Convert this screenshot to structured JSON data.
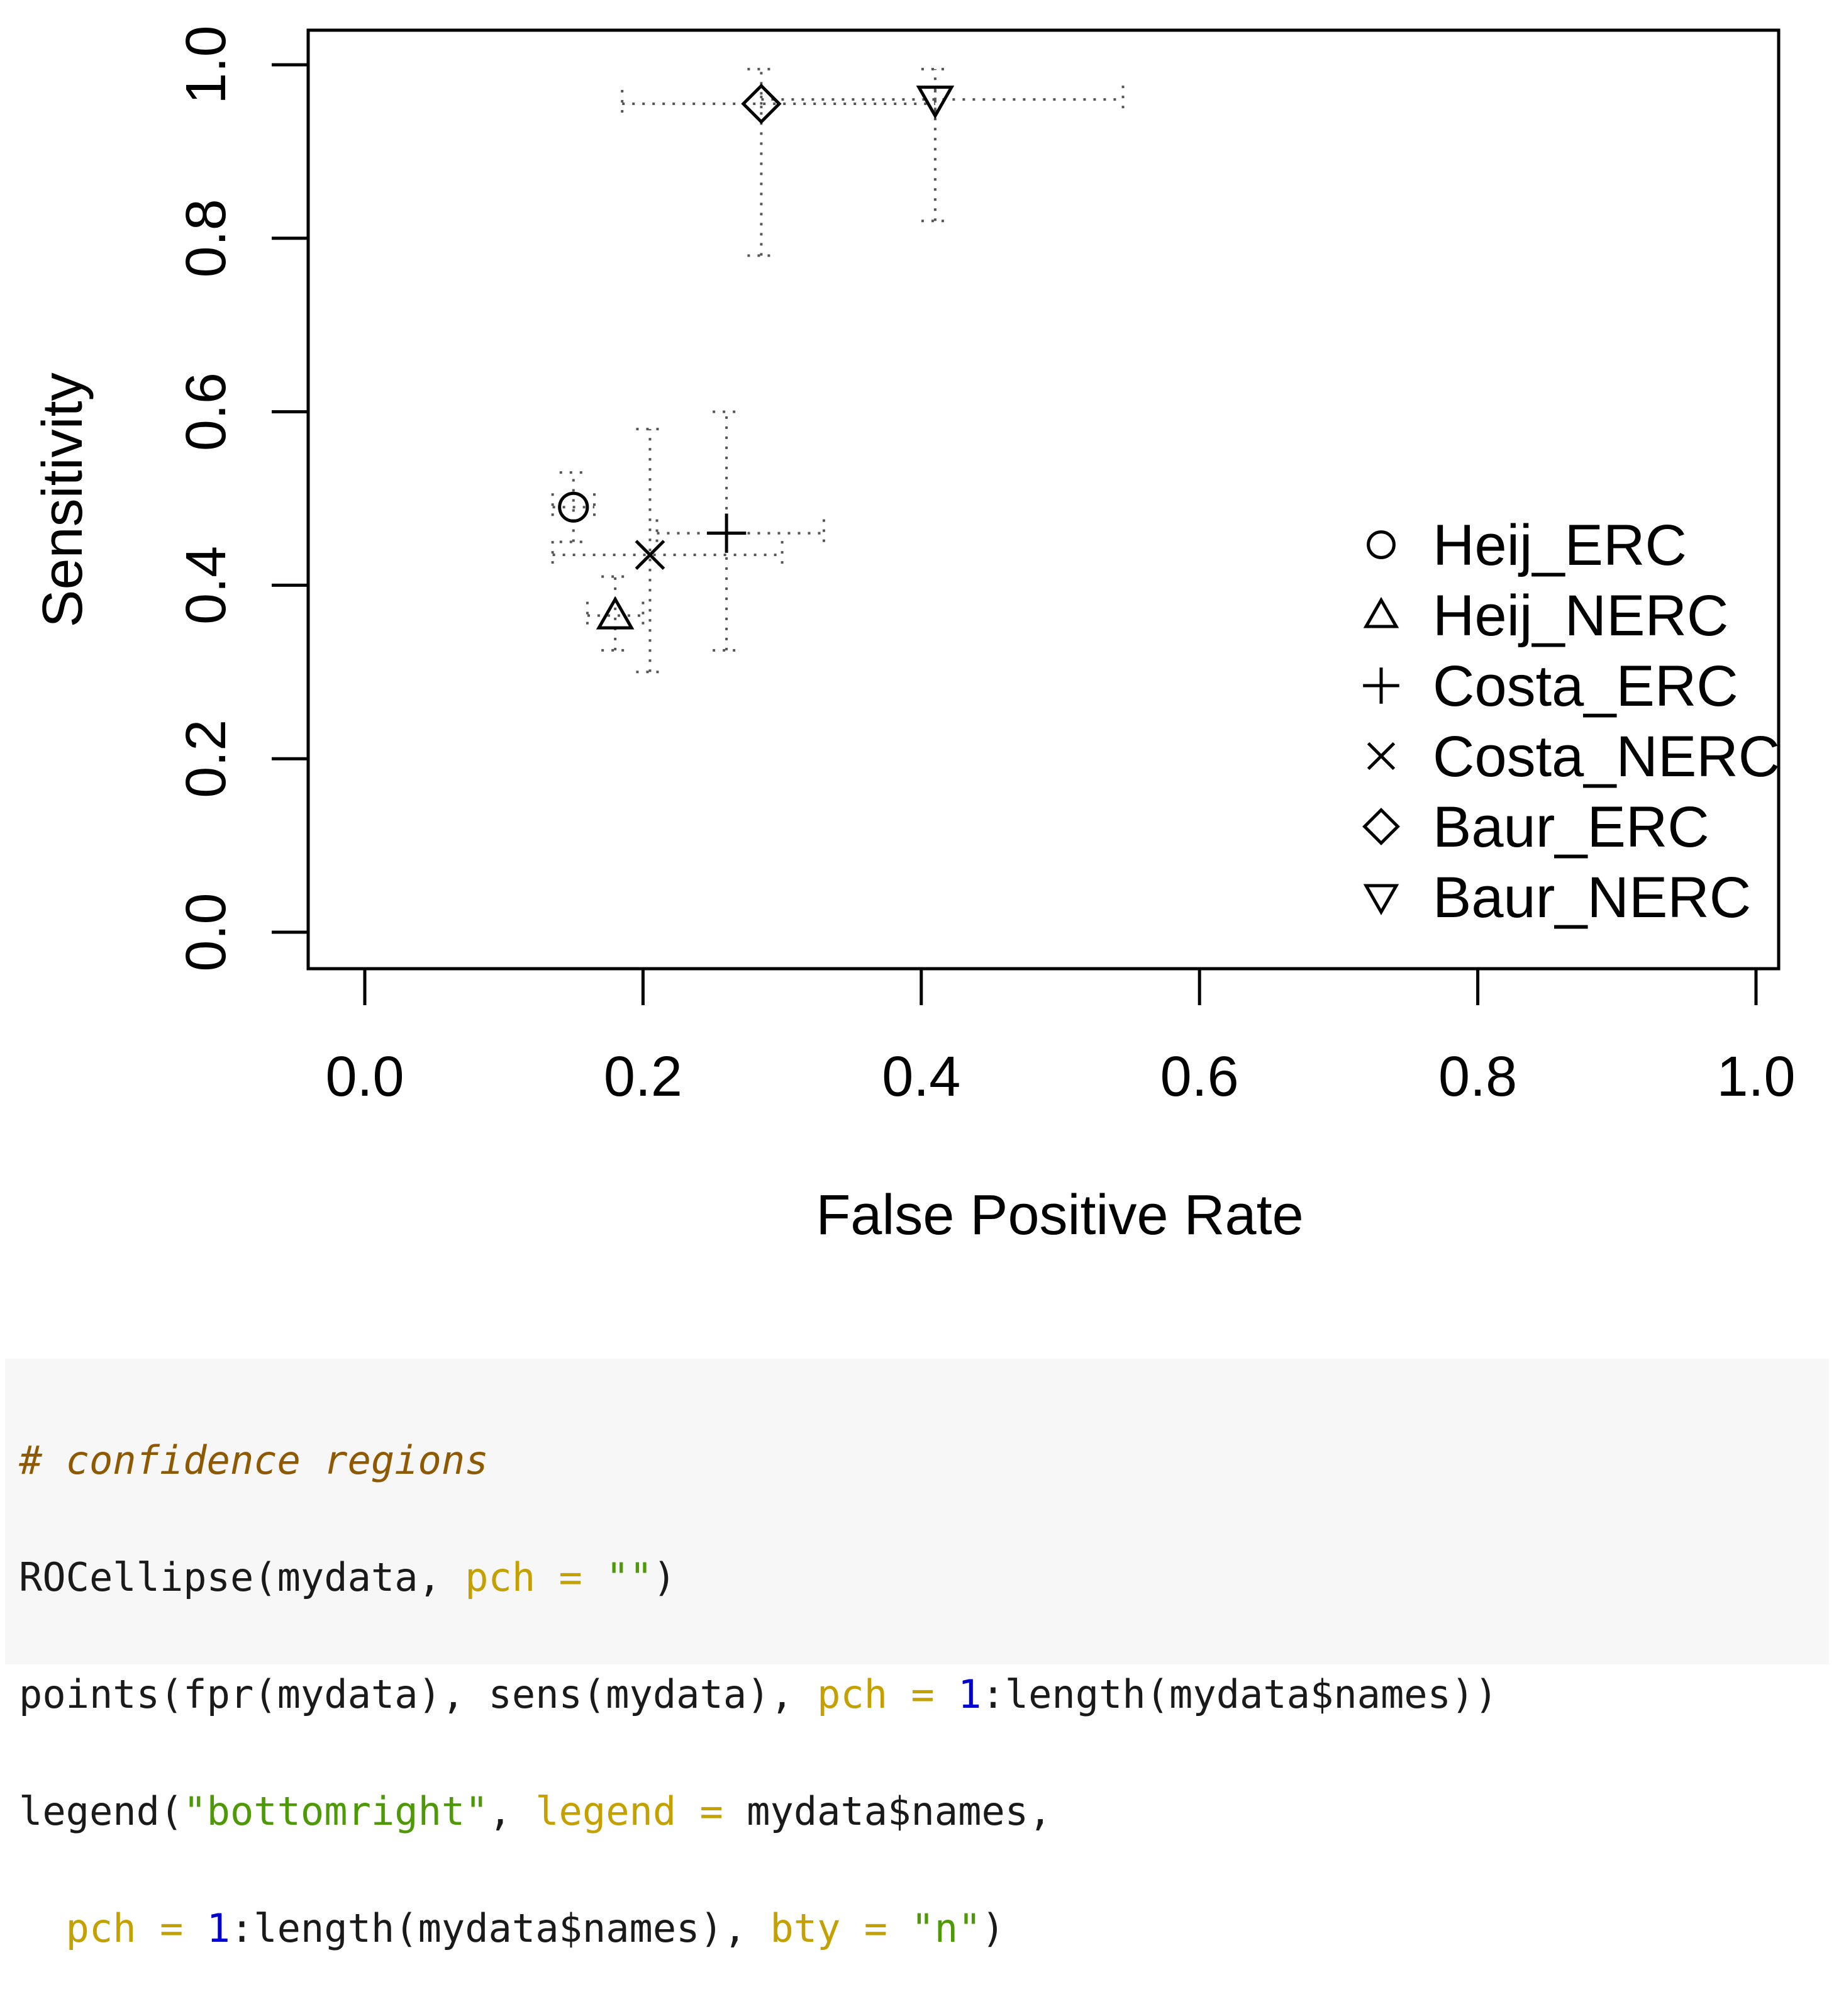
{
  "chart_data": {
    "type": "scatter",
    "xlabel": "False Positive Rate",
    "ylabel": "Sensitivity",
    "xlim": [
      0,
      1
    ],
    "ylim": [
      0,
      1
    ],
    "x_ticks": [
      "0.0",
      "0.2",
      "0.4",
      "0.6",
      "0.8",
      "1.0"
    ],
    "y_ticks": [
      "0.0",
      "0.2",
      "0.4",
      "0.6",
      "0.8",
      "1.0"
    ],
    "grid": false,
    "legend_position": "bottom-right",
    "series": [
      {
        "name": "Heij_ERC",
        "symbol": "circle",
        "x": 0.15,
        "y": 0.49,
        "x_ci": [
          0.135,
          0.165
        ],
        "y_ci": [
          0.45,
          0.53
        ]
      },
      {
        "name": "Heij_NERC",
        "symbol": "triangle-up",
        "x": 0.18,
        "y": 0.365,
        "x_ci": [
          0.16,
          0.2
        ],
        "y_ci": [
          0.325,
          0.41
        ]
      },
      {
        "name": "Costa_ERC",
        "symbol": "plus",
        "x": 0.26,
        "y": 0.46,
        "x_ci": [
          0.21,
          0.33
        ],
        "y_ci": [
          0.325,
          0.6
        ]
      },
      {
        "name": "Costa_NERC",
        "symbol": "cross",
        "x": 0.205,
        "y": 0.435,
        "x_ci": [
          0.135,
          0.3
        ],
        "y_ci": [
          0.3,
          0.58
        ]
      },
      {
        "name": "Baur_ERC",
        "symbol": "diamond",
        "x": 0.285,
        "y": 0.955,
        "x_ci": [
          0.185,
          0.41
        ],
        "y_ci": [
          0.78,
          0.995
        ]
      },
      {
        "name": "Baur_NERC",
        "symbol": "triangle-down",
        "x": 0.41,
        "y": 0.96,
        "x_ci": [
          0.285,
          0.545
        ],
        "y_ci": [
          0.82,
          0.995
        ]
      }
    ]
  },
  "code": {
    "comment": "# confidence regions",
    "line1_fn": "ROCellipse(mydata, ",
    "line1_arg": "pch",
    "line1_eq": " = ",
    "line1_str": "\"\"",
    "line1_end": ")",
    "line2_fn": "points(fpr(mydata), sens(mydata), ",
    "line2_arg": "pch",
    "line2_eq": " = ",
    "line2_num": "1",
    "line2_end": ":length(mydata$names))",
    "line3_fn": "legend(",
    "line3_str": "\"bottomright\"",
    "line3_comma": ", ",
    "line3_arg": "legend",
    "line3_eq": " = ",
    "line3_end": "mydata$names,",
    "line4_indent": "  ",
    "line4_arg1": "pch",
    "line4_eq1": " = ",
    "line4_num": "1",
    "line4_mid": ":length(mydata$names), ",
    "line4_arg2": "bty",
    "line4_eq2": " = ",
    "line4_str": "\"n\"",
    "line4_end": ")"
  }
}
